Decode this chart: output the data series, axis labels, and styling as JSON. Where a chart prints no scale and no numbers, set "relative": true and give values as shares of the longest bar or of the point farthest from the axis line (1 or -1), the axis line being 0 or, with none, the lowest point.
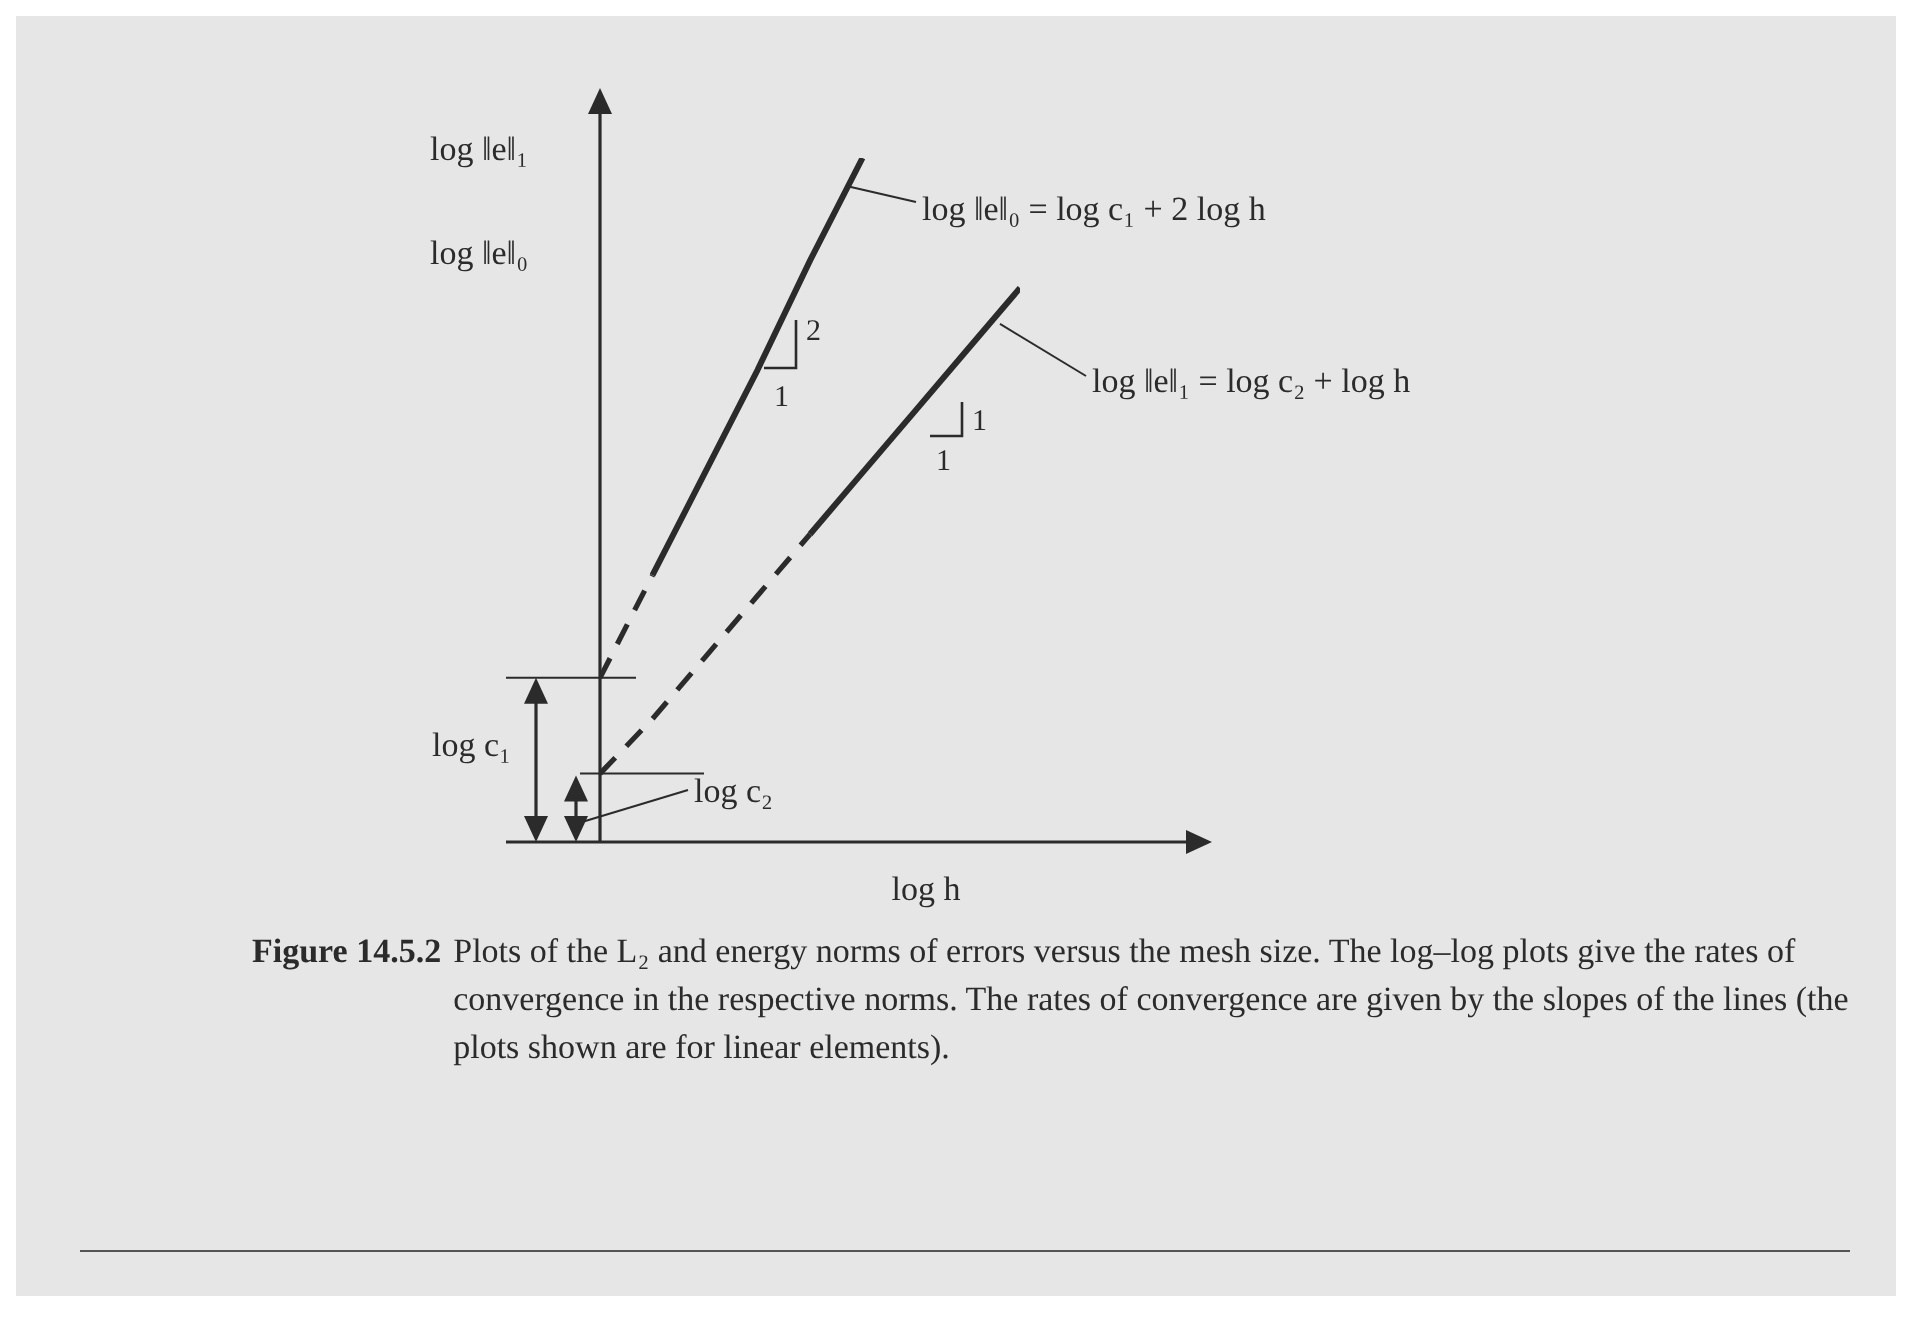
{
  "chart_data": {
    "type": "line",
    "relative": true,
    "xlabel": "log h",
    "ylabel": "log ‖e‖₁\nlog ‖e‖₀",
    "categories": [
      null,
      null,
      null,
      null,
      null,
      null,
      null,
      null,
      null
    ],
    "series": [
      {
        "color": "#2b2b2b",
        "line_style": "dashed",
        "values": [
          0.24,
          0.39,
          null,
          null,
          null,
          null,
          null,
          null,
          null
        ]
      },
      {
        "color": "#2b2b2b",
        "line_style": "solid",
        "values": [
          null,
          0.39,
          0.54,
          0.69,
          0.85,
          1.0,
          null,
          null,
          null
        ]
      },
      {
        "color": "#2b2b2b",
        "line_style": "dashed",
        "values": [
          0.1,
          0.18,
          0.27,
          0.36,
          0.45,
          null,
          null,
          null,
          null
        ]
      },
      {
        "color": "#2b2b2b",
        "line_style": "solid",
        "values": [
          null,
          null,
          null,
          null,
          0.45,
          0.54,
          0.63,
          0.72,
          0.81
        ]
      }
    ],
    "annotations": [
      "log ‖e‖₀ = log c₁ + 2 log h",
      "log ‖e‖₁ = log c₂ + log h",
      "2",
      "1",
      "1",
      "1",
      "log c₁",
      "log c₂",
      "Figure 14.5.2 Plots of the L₂ and energy norms of errors versus the mesh size. The log–log plots give the rates of convergence in the respective norms. The rates of convergence are given by the slopes of the lines (the plots shown are for linear elements)."
    ],
    "grid": false,
    "legend": false,
    "marker": "none"
  }
}
